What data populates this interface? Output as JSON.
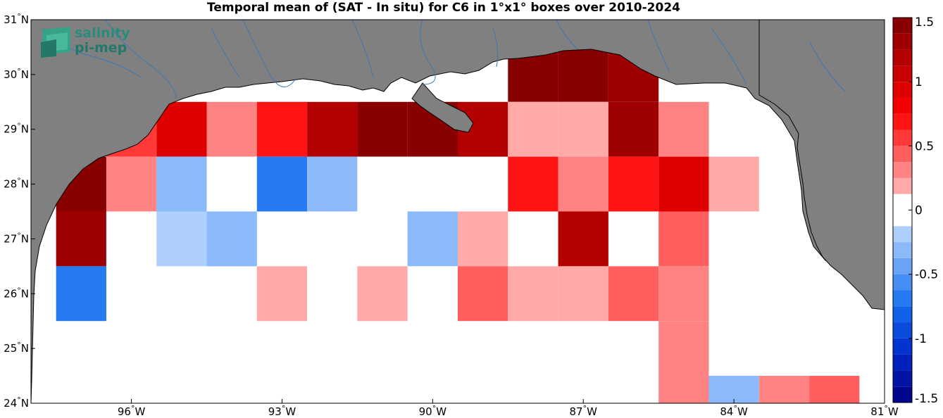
{
  "title": "Temporal mean of (SAT - In situ) for C6 in 1°x1° boxes over 2010-2024",
  "logo": {
    "line1": "salinity",
    "line2": "pi-mep",
    "icon": "salinity-logo-icon"
  },
  "colors": {
    "land": "#808080",
    "coastline": "#000000",
    "rivers": "#3a78b5",
    "accent_logo": "#1b8f7a"
  },
  "chart_data": {
    "type": "heatmap",
    "title": "Temporal mean of (SAT - In situ) for C6 in 1°x1° boxes over 2010-2024",
    "lon_range": [
      -98,
      -81
    ],
    "lat_range": [
      24,
      31
    ],
    "x_ticks": [
      {
        "value": -96,
        "deg": "96",
        "hemi": "W"
      },
      {
        "value": -93,
        "deg": "93",
        "hemi": "W"
      },
      {
        "value": -90,
        "deg": "90",
        "hemi": "W"
      },
      {
        "value": -87,
        "deg": "87",
        "hemi": "W"
      },
      {
        "value": -84,
        "deg": "84",
        "hemi": "W"
      },
      {
        "value": -81,
        "deg": "81",
        "hemi": "W"
      }
    ],
    "y_ticks": [
      {
        "value": 24,
        "deg": "24",
        "hemi": "N"
      },
      {
        "value": 25,
        "deg": "25",
        "hemi": "N"
      },
      {
        "value": 26,
        "deg": "26",
        "hemi": "N"
      },
      {
        "value": 27,
        "deg": "27",
        "hemi": "N"
      },
      {
        "value": 28,
        "deg": "28",
        "hemi": "N"
      },
      {
        "value": 29,
        "deg": "29",
        "hemi": "N"
      },
      {
        "value": 30,
        "deg": "30",
        "hemi": "N"
      },
      {
        "value": 31,
        "deg": "31",
        "hemi": "N"
      }
    ],
    "colorbar": {
      "range": [
        -1.5,
        1.5
      ],
      "levels": 24,
      "ticks": [
        {
          "value": 1.5,
          "label": "1.5"
        },
        {
          "value": 1,
          "label": "1"
        },
        {
          "value": 0.5,
          "label": "0.5"
        },
        {
          "value": 0,
          "label": "0"
        },
        {
          "value": -0.5,
          "label": "-0.5"
        },
        {
          "value": -1,
          "label": "-1"
        },
        {
          "value": -1.5,
          "label": "-1.5"
        }
      ]
    },
    "cells": [
      {
        "lon": -97,
        "lat": 28,
        "value": 1.45
      },
      {
        "lon": -97,
        "lat": 27,
        "value": 1.35
      },
      {
        "lon": -97,
        "lat": 26,
        "value": -0.75
      },
      {
        "lon": -96,
        "lat": 29,
        "value": 0.5
      },
      {
        "lon": -96,
        "lat": 28,
        "value": 0.3
      },
      {
        "lon": -96,
        "lat": 27,
        "value": -0.1
      },
      {
        "lon": -95,
        "lat": 29,
        "value": 0.95
      },
      {
        "lon": -95,
        "lat": 28,
        "value": -0.35
      },
      {
        "lon": -95,
        "lat": 27,
        "value": -0.2
      },
      {
        "lon": -94,
        "lat": 29,
        "value": 0.3
      },
      {
        "lon": -94,
        "lat": 28,
        "value": -0.1
      },
      {
        "lon": -94,
        "lat": 27,
        "value": -0.35
      },
      {
        "lon": -93,
        "lat": 29,
        "value": 0.7
      },
      {
        "lon": -93,
        "lat": 28,
        "value": -0.7
      },
      {
        "lon": -93,
        "lat": 26,
        "value": 0.15
      },
      {
        "lon": -92,
        "lat": 29,
        "value": 1.2
      },
      {
        "lon": -92,
        "lat": 28,
        "value": -0.35
      },
      {
        "lon": -92,
        "lat": 26,
        "value": -0.1
      },
      {
        "lon": -91,
        "lat": 29,
        "value": 1.45
      },
      {
        "lon": -91,
        "lat": 28,
        "value": -0.1
      },
      {
        "lon": -91,
        "lat": 27,
        "value": -0.1
      },
      {
        "lon": -91,
        "lat": 26,
        "value": 0.15
      },
      {
        "lon": -90,
        "lat": 29,
        "value": 1.45
      },
      {
        "lon": -90,
        "lat": 28,
        "value": -0.1
      },
      {
        "lon": -90,
        "lat": 27,
        "value": -0.3
      },
      {
        "lon": -90,
        "lat": 26,
        "value": -0.1
      },
      {
        "lon": -89,
        "lat": 29,
        "value": 1.2
      },
      {
        "lon": -89,
        "lat": 27,
        "value": 0.15
      },
      {
        "lon": -89,
        "lat": 26,
        "value": 0.45
      },
      {
        "lon": -88,
        "lat": 30,
        "value": 1.45
      },
      {
        "lon": -88,
        "lat": 29,
        "value": 0.15
      },
      {
        "lon": -88,
        "lat": 28,
        "value": 0.7
      },
      {
        "lon": -88,
        "lat": 26,
        "value": 0.15
      },
      {
        "lon": -87,
        "lat": 30,
        "value": 1.45
      },
      {
        "lon": -87,
        "lat": 29,
        "value": 0.15
      },
      {
        "lon": -87,
        "lat": 28,
        "value": 0.3
      },
      {
        "lon": -87,
        "lat": 27,
        "value": 1.2
      },
      {
        "lon": -87,
        "lat": 26,
        "value": 0.15
      },
      {
        "lon": -86,
        "lat": 30,
        "value": 1.35
      },
      {
        "lon": -86,
        "lat": 29,
        "value": 1.3
      },
      {
        "lon": -86,
        "lat": 28,
        "value": 0.7
      },
      {
        "lon": -86,
        "lat": 26,
        "value": 0.4
      },
      {
        "lon": -85,
        "lat": 29,
        "value": 0.3
      },
      {
        "lon": -85,
        "lat": 28,
        "value": 0.95
      },
      {
        "lon": -85,
        "lat": 27,
        "value": 0.4
      },
      {
        "lon": -85,
        "lat": 26,
        "value": 0.3
      },
      {
        "lon": -85,
        "lat": 25,
        "value": 0.3
      },
      {
        "lon": -85,
        "lat": 24,
        "value": 0.3
      },
      {
        "lon": -84,
        "lat": 28,
        "value": 0.15
      },
      {
        "lon": -84,
        "lat": 24,
        "value": -0.35
      },
      {
        "lon": -83,
        "lat": 24,
        "value": 0.3
      },
      {
        "lon": -82,
        "lat": 24,
        "value": 0.45
      }
    ]
  }
}
